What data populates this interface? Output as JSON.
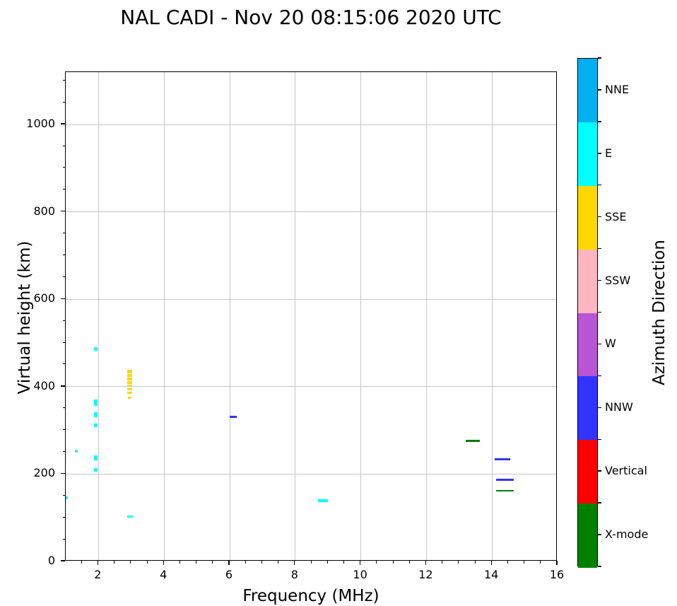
{
  "title": "NAL CADI - Nov 20 08:15:06 2020 UTC",
  "chart_data": {
    "type": "scatter",
    "title": "NAL CADI - Nov 20 08:15:06 2020 UTC",
    "xlabel": "Frequency (MHz)",
    "ylabel": "Virtual height (km)",
    "xlim": [
      1,
      16
    ],
    "ylim": [
      0,
      1120
    ],
    "xticks": [
      2,
      4,
      6,
      8,
      10,
      12,
      14,
      16
    ],
    "yticks": [
      0,
      200,
      400,
      600,
      800,
      1000
    ],
    "x_minor_step": 0.5,
    "y_minor_step": 50,
    "grid": true,
    "legend_position": "right-colorbar",
    "colorbar": {
      "label": "Azimuth Direction",
      "categories_top_to_bottom": [
        "NNE",
        "E",
        "SSE",
        "SSW",
        "W",
        "NNW",
        "Vertical",
        "X-mode"
      ],
      "colors": {
        "NNE": "#00b0f0",
        "E": "#00ffff",
        "SSE": "#ffd700",
        "SSW": "#ffb6c1",
        "W": "#ba55d3",
        "NNW": "#3333ff",
        "Vertical": "#ff0000",
        "X-mode": "#008000"
      }
    },
    "series": [
      {
        "name": "E",
        "marks_freqMHz_heightkm": [
          {
            "f0": 1.0,
            "f1": 1.06,
            "k0": 142,
            "k1": 149
          },
          {
            "f0": 1.28,
            "f1": 1.36,
            "k0": 249,
            "k1": 256
          },
          {
            "f0": 1.87,
            "f1": 1.97,
            "k0": 483,
            "k1": 490
          },
          {
            "f0": 1.86,
            "f1": 1.97,
            "k0": 356,
            "k1": 370
          },
          {
            "f0": 1.86,
            "f1": 1.97,
            "k0": 330,
            "k1": 342
          },
          {
            "f0": 1.87,
            "f1": 1.96,
            "k0": 308,
            "k1": 315
          },
          {
            "f0": 1.86,
            "f1": 1.97,
            "k0": 231,
            "k1": 243
          },
          {
            "f0": 1.87,
            "f1": 1.96,
            "k0": 206,
            "k1": 214
          },
          {
            "f0": 2.87,
            "f1": 3.04,
            "k0": 101,
            "k1": 105
          },
          {
            "f0": 8.69,
            "f1": 8.99,
            "k0": 136,
            "k1": 142
          }
        ]
      },
      {
        "name": "SSE",
        "marks_freqMHz_heightkm": [
          {
            "f0": 2.87,
            "f1": 3.02,
            "k0": 431,
            "k1": 438
          },
          {
            "f0": 2.87,
            "f1": 3.02,
            "k0": 423,
            "k1": 429
          },
          {
            "f0": 2.87,
            "f1": 3.02,
            "k0": 415,
            "k1": 421
          },
          {
            "f0": 2.87,
            "f1": 3.02,
            "k0": 407,
            "k1": 413
          },
          {
            "f0": 2.87,
            "f1": 3.02,
            "k0": 399,
            "k1": 405
          },
          {
            "f0": 2.87,
            "f1": 3.02,
            "k0": 391,
            "k1": 396
          },
          {
            "f0": 2.87,
            "f1": 3.02,
            "k0": 384,
            "k1": 389
          },
          {
            "f0": 2.89,
            "f1": 3.01,
            "k0": 373,
            "k1": 377
          }
        ]
      },
      {
        "name": "NNW",
        "marks_freqMHz_heightkm": [
          {
            "f0": 6.01,
            "f1": 6.21,
            "k0": 329,
            "k1": 334
          },
          {
            "f0": 14.08,
            "f1": 14.56,
            "k0": 232,
            "k1": 237
          },
          {
            "f0": 14.13,
            "f1": 14.67,
            "k0": 185,
            "k1": 189
          }
        ]
      },
      {
        "name": "X-mode",
        "marks_freqMHz_heightkm": [
          {
            "f0": 13.19,
            "f1": 13.64,
            "k0": 274,
            "k1": 279
          },
          {
            "f0": 14.13,
            "f1": 14.67,
            "k0": 160,
            "k1": 164
          }
        ]
      }
    ]
  }
}
